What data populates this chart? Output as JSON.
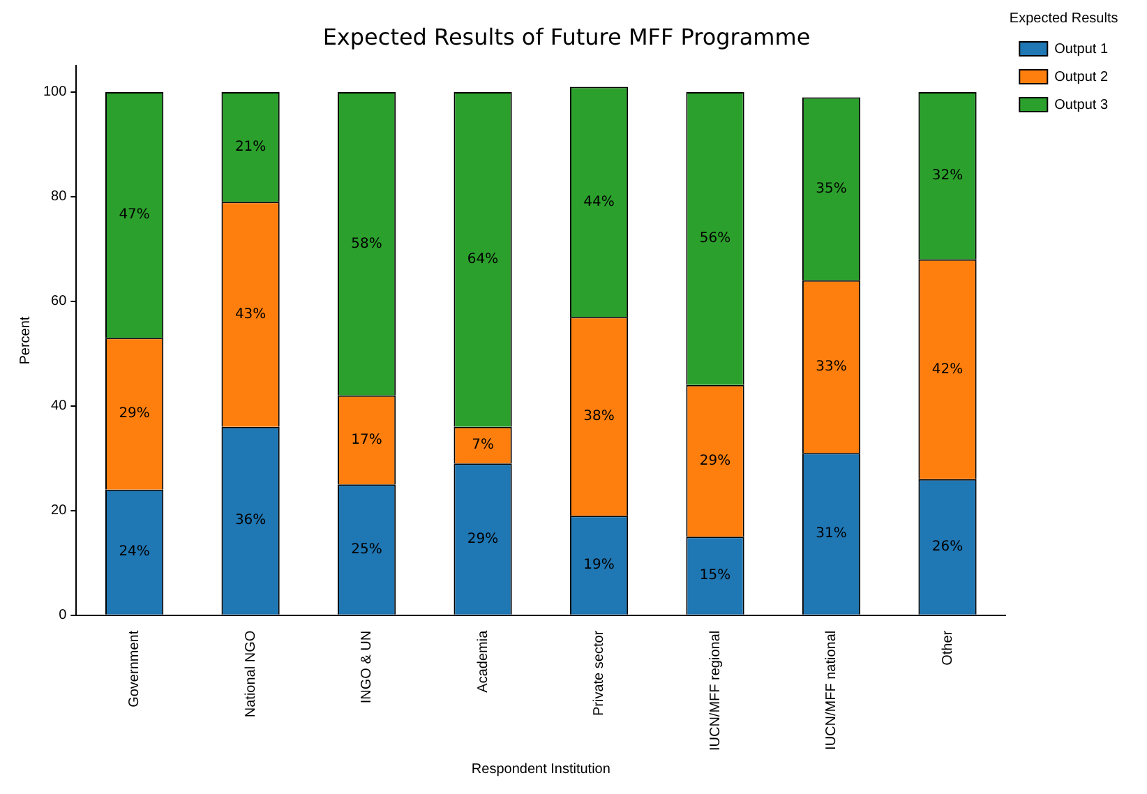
{
  "chart_data": {
    "type": "bar",
    "title": "Expected Results of Future MFF Programme",
    "xlabel": "Respondent Institution",
    "ylabel": "Percent",
    "legend_title": "Expected Results",
    "categories": [
      "Government",
      "National NGO",
      "INGO & UN",
      "Academia",
      "Private sector",
      "IUCN/MFF regional",
      "IUCN/MFF national",
      "Other"
    ],
    "series": [
      {
        "name": "Output 1",
        "color": "#1f77b4",
        "values": [
          24,
          36,
          25,
          29,
          19,
          15,
          31,
          26
        ],
        "value_labels": [
          "24%",
          "36%",
          "25%",
          "29%",
          "19%",
          "15%",
          "31%",
          "26%"
        ]
      },
      {
        "name": "Output 2",
        "color": "#ff7f0e",
        "values": [
          29,
          43,
          17,
          7,
          38,
          29,
          33,
          42
        ],
        "value_labels": [
          "29%",
          "43%",
          "17%",
          "7%",
          "38%",
          "29%",
          "33%",
          "42%"
        ]
      },
      {
        "name": "Output 3",
        "color": "#2ca02c",
        "values": [
          47,
          21,
          58,
          64,
          44,
          56,
          35,
          32
        ],
        "value_labels": [
          "47%",
          "21%",
          "58%",
          "64%",
          "44%",
          "56%",
          "35%",
          "32%"
        ]
      }
    ],
    "stacked": true,
    "ylim": [
      0,
      105
    ],
    "yticks": [
      0,
      20,
      40,
      60,
      80,
      100
    ],
    "grid": false,
    "legend": "top right"
  }
}
